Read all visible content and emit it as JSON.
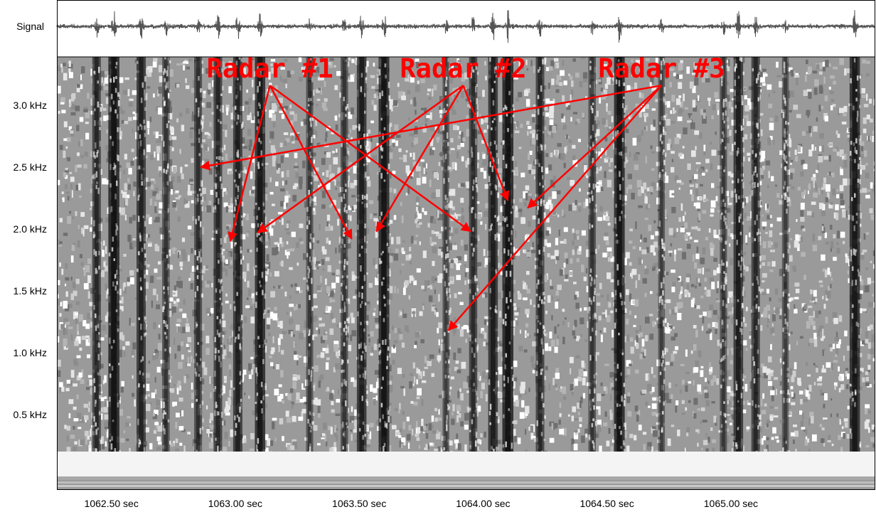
{
  "chart_data": {
    "type": "heatmap",
    "title": "",
    "signal_label": "Signal",
    "xlabel": "",
    "ylabel": "",
    "x_unit": "sec",
    "y_unit": "kHz",
    "xlim": [
      1062.28,
      1065.58
    ],
    "ylim": [
      0.0,
      3.5
    ],
    "x_ticks": [
      {
        "value": 1062.5,
        "label": "1062.50 sec"
      },
      {
        "value": 1063.0,
        "label": "1063.00 sec"
      },
      {
        "value": 1063.5,
        "label": "1063.50 sec"
      },
      {
        "value": 1064.0,
        "label": "1064.00 sec"
      },
      {
        "value": 1064.5,
        "label": "1064.50 sec"
      },
      {
        "value": 1065.0,
        "label": "1065.00 sec"
      }
    ],
    "y_ticks": [
      {
        "value": 3.0,
        "label": "3.0 kHz"
      },
      {
        "value": 2.5,
        "label": "2.5 kHz"
      },
      {
        "value": 2.0,
        "label": "2.0 kHz"
      },
      {
        "value": 1.5,
        "label": "1.5 kHz"
      },
      {
        "value": 1.0,
        "label": "1.0 kHz"
      },
      {
        "value": 0.5,
        "label": "0.5 kHz"
      }
    ],
    "pulses": [
      {
        "time": 1062.44,
        "intensity": 0.6
      },
      {
        "time": 1062.51,
        "intensity": 0.95
      },
      {
        "time": 1062.62,
        "intensity": 0.7
      },
      {
        "time": 1062.72,
        "intensity": 0.45
      },
      {
        "time": 1062.85,
        "intensity": 0.5
      },
      {
        "time": 1062.93,
        "intensity": 0.6
      },
      {
        "time": 1063.01,
        "intensity": 0.7
      },
      {
        "time": 1063.1,
        "intensity": 0.85
      },
      {
        "time": 1063.3,
        "intensity": 0.4
      },
      {
        "time": 1063.44,
        "intensity": 0.45
      },
      {
        "time": 1063.51,
        "intensity": 0.75
      },
      {
        "time": 1063.6,
        "intensity": 0.9
      },
      {
        "time": 1063.85,
        "intensity": 0.35
      },
      {
        "time": 1063.96,
        "intensity": 0.55
      },
      {
        "time": 1064.04,
        "intensity": 0.75
      },
      {
        "time": 1064.1,
        "intensity": 0.95
      },
      {
        "time": 1064.23,
        "intensity": 0.6
      },
      {
        "time": 1064.44,
        "intensity": 0.45
      },
      {
        "time": 1064.55,
        "intensity": 0.9
      },
      {
        "time": 1064.72,
        "intensity": 0.35
      },
      {
        "time": 1064.97,
        "intensity": 0.4
      },
      {
        "time": 1065.03,
        "intensity": 0.75
      },
      {
        "time": 1065.1,
        "intensity": 0.6
      },
      {
        "time": 1065.22,
        "intensity": 0.35
      },
      {
        "time": 1065.5,
        "intensity": 0.85
      }
    ],
    "annotations": [
      {
        "text": "Radar #1",
        "anchor": {
          "time": 1063.14,
          "freq": 3.16
        },
        "targets": [
          {
            "time": 1062.98,
            "freq": 1.9
          },
          {
            "time": 1063.47,
            "freq": 1.92
          },
          {
            "time": 1063.95,
            "freq": 1.98
          }
        ]
      },
      {
        "text": "Radar #2",
        "anchor": {
          "time": 1063.92,
          "freq": 3.16
        },
        "targets": [
          {
            "time": 1063.09,
            "freq": 1.97
          },
          {
            "time": 1063.57,
            "freq": 1.98
          },
          {
            "time": 1064.1,
            "freq": 2.23
          }
        ]
      },
      {
        "text": "Radar #3",
        "anchor": {
          "time": 1064.72,
          "freq": 3.16
        },
        "targets": [
          {
            "time": 1062.86,
            "freq": 2.5
          },
          {
            "time": 1064.18,
            "freq": 2.17
          },
          {
            "time": 1063.86,
            "freq": 1.18
          }
        ]
      }
    ],
    "colors": {
      "annotation": "#ff0000",
      "noise_light": "#f2f2f2",
      "noise_mid": "#9a9a9a",
      "pulse_dark": "#0a0a0a",
      "signal_trace": "#555555",
      "border": "#000000"
    }
  }
}
